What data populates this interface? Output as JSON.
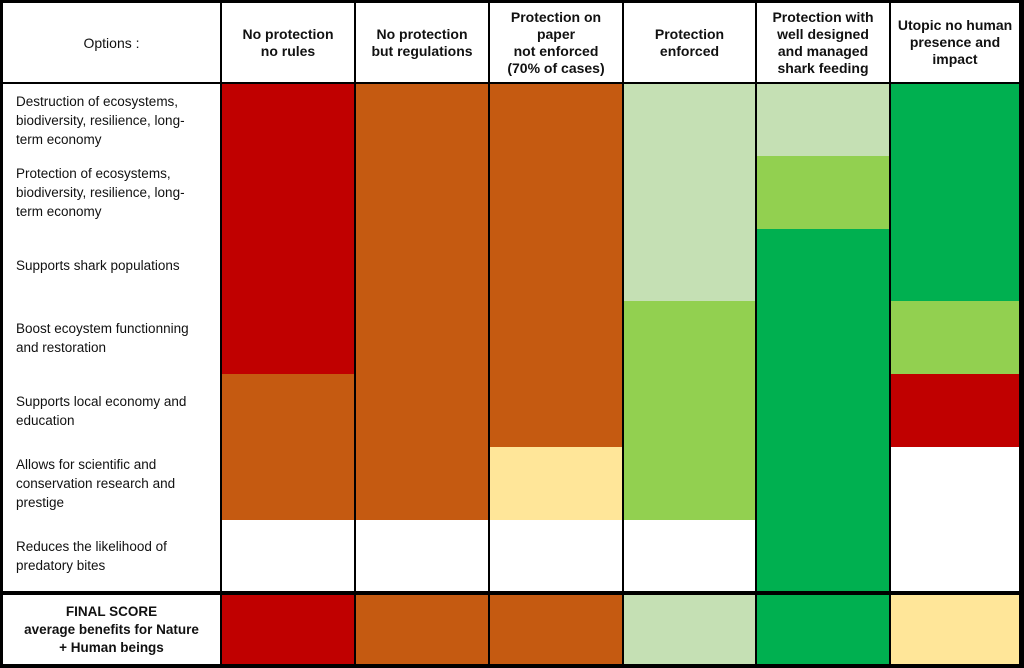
{
  "chart_data": {
    "type": "table",
    "corner_label": "Options :",
    "columns": [
      "No protection\nno rules",
      "No protection\nbut regulations",
      "Protection on\npaper\nnot enforced\n(70% of cases)",
      "Protection\nenforced",
      "Protection with\nwell designed\nand managed\nshark feeding",
      "Utopic no human\npresence and\nimpact"
    ],
    "rows": [
      "Destruction of ecosystems,\nbiodiversity, resilience, long-\nterm economy",
      "Protection of ecosystems,\nbiodiversity, resilience, long-\nterm economy",
      "Supports shark populations",
      "Boost ecoystem functionning\nand restoration",
      "Supports local economy and\neducation",
      "Allows for scientific and\nconservation research and\nprestige",
      "Reduces the likelihood of\npredatory bites"
    ],
    "final_score_label": "FINAL SCORE\naverage benefits for Nature\n+ Human beings",
    "legend_colors": {
      "red": "#c00000",
      "orange": "#c55a11",
      "light_yellow": "#ffe699",
      "pale_green": "#c5e0b4",
      "light_green": "#92d050",
      "dark_green": "#00b050",
      "white": "#ffffff"
    },
    "cell_colors": [
      [
        "red",
        "orange",
        "orange",
        "pale_green",
        "pale_green",
        "dark_green"
      ],
      [
        "red",
        "orange",
        "orange",
        "pale_green",
        "light_green",
        "dark_green"
      ],
      [
        "red",
        "orange",
        "orange",
        "pale_green",
        "dark_green",
        "dark_green"
      ],
      [
        "red",
        "orange",
        "orange",
        "light_green",
        "dark_green",
        "light_green"
      ],
      [
        "orange",
        "orange",
        "orange",
        "light_green",
        "dark_green",
        "red"
      ],
      [
        "orange",
        "orange",
        "light_yellow",
        "light_green",
        "dark_green",
        "white"
      ],
      [
        "white",
        "white",
        "white",
        "white",
        "dark_green",
        "white"
      ]
    ],
    "final_scores": [
      "red",
      "orange",
      "orange",
      "pale_green",
      "dark_green",
      "light_yellow"
    ]
  }
}
